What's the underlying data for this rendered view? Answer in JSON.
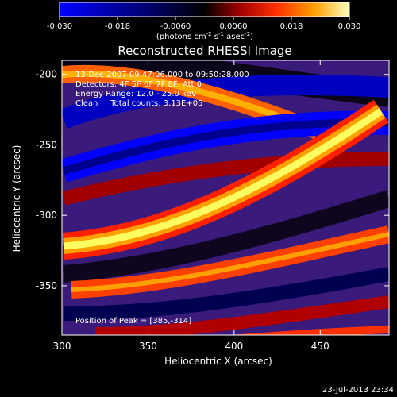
{
  "chart_data": {
    "type": "heatmap",
    "title": "Reconstructed RHESSI Image",
    "xlabel": "Heliocentric X (arcsec)",
    "ylabel": "Heliocentric Y (arcsec)",
    "xlim": [
      300,
      490
    ],
    "ylim": [
      -385,
      -190
    ],
    "x_ticks": [
      300,
      350,
      400,
      450
    ],
    "y_ticks": [
      -200,
      -250,
      -300,
      -350
    ],
    "colorbar": {
      "min": -0.03,
      "max": 0.03,
      "ticks": [
        "-0.030",
        "-0.018",
        "-0.0060",
        "0.0060",
        "0.018",
        "0.030"
      ],
      "unit_prefix": "(photons cm",
      "unit_sup1": "-2",
      "unit_mid1": " s",
      "unit_sup2": "-1",
      "unit_mid2": " asec",
      "unit_sup3": "-2",
      "unit_end": ")"
    },
    "annotations": [
      "13-Dec-2007 09:47:06.000 to 09:50:28.000",
      "Detectors: 4F 5F 6F 7F 8F, Att 0",
      "Energy Range: 12.0 - 25.0 keV",
      "Clean     Total counts: 3.13E+05"
    ],
    "peak_label": "Position of Peak = [385,-314]",
    "peak": [
      385,
      -314
    ]
  },
  "timestamp": "23-Jul-2013 23:34"
}
